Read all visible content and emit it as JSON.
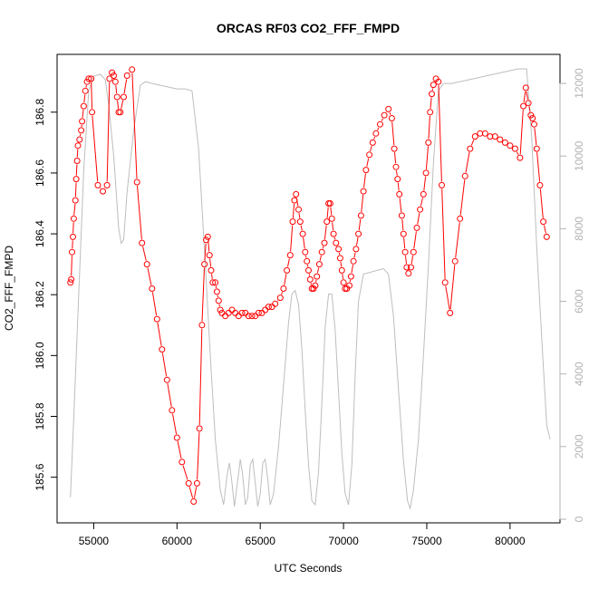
{
  "chart_data": {
    "type": "line",
    "title": "ORCAS RF03 CO2_FFF_FMPD",
    "xlabel": "UTC Seconds",
    "ylabel": "CO2_FFF_FMPD",
    "xlim": [
      52800,
      83000
    ],
    "ylim": [
      185.45,
      186.99
    ],
    "y2lim": [
      -100,
      12800
    ],
    "grid": false,
    "legend": "none",
    "x_ticks": [
      55000,
      60000,
      65000,
      70000,
      75000,
      80000
    ],
    "x_tick_labels": [
      "55000",
      "60000",
      "65000",
      "70000",
      "75000",
      "80000"
    ],
    "y_ticks": [
      185.6,
      185.8,
      186.0,
      186.2,
      186.4,
      186.6,
      186.8
    ],
    "y_tick_labels": [
      "185.6",
      "185.8",
      "186.0",
      "186.2",
      "186.4",
      "186.6",
      "186.8"
    ],
    "y2_ticks": [
      0,
      2000,
      4000,
      6000,
      8000,
      10000,
      12000
    ],
    "y2_tick_labels": [
      "0",
      "2000",
      "4000",
      "6000",
      "8000",
      "10000",
      "12000"
    ],
    "colors": {
      "co2": "#ff0000",
      "altitude": "#bebebe",
      "right_axis": "#b3b3b3",
      "frame": "#000000"
    },
    "series": [
      {
        "axis": "left",
        "style": "points-lines",
        "points": [
          [
            53600,
            186.24
          ],
          [
            53650,
            186.25
          ],
          [
            53700,
            186.34
          ],
          [
            53750,
            186.39
          ],
          [
            53800,
            186.45
          ],
          [
            53900,
            186.51
          ],
          [
            53950,
            186.58
          ],
          [
            54000,
            186.64
          ],
          [
            54050,
            186.69
          ],
          [
            54150,
            186.71
          ],
          [
            54250,
            186.74
          ],
          [
            54300,
            186.77
          ],
          [
            54400,
            186.82
          ],
          [
            54500,
            186.87
          ],
          [
            54600,
            186.9
          ],
          [
            54700,
            186.91
          ],
          [
            54850,
            186.91
          ],
          [
            54900,
            186.8
          ],
          [
            55250,
            186.56
          ],
          [
            55550,
            186.54
          ],
          [
            55800,
            186.56
          ],
          [
            55950,
            186.91
          ],
          [
            56100,
            186.93
          ],
          [
            56200,
            186.92
          ],
          [
            56300,
            186.9
          ],
          [
            56400,
            186.85
          ],
          [
            56500,
            186.8
          ],
          [
            56600,
            186.8
          ],
          [
            56800,
            186.85
          ],
          [
            57000,
            186.92
          ],
          [
            57300,
            186.94
          ],
          [
            57600,
            186.57
          ],
          [
            57900,
            186.37
          ],
          [
            58200,
            186.3
          ],
          [
            58500,
            186.22
          ],
          [
            58800,
            186.12
          ],
          [
            59100,
            186.02
          ],
          [
            59400,
            185.92
          ],
          [
            59700,
            185.82
          ],
          [
            60000,
            185.73
          ],
          [
            60300,
            185.65
          ],
          [
            60700,
            185.58
          ],
          [
            61000,
            185.52
          ],
          [
            61200,
            185.58
          ],
          [
            61350,
            185.76
          ],
          [
            61500,
            186.1
          ],
          [
            61650,
            186.3
          ],
          [
            61750,
            186.38
          ],
          [
            61850,
            186.39
          ],
          [
            61950,
            186.33
          ],
          [
            62050,
            186.28
          ],
          [
            62150,
            186.24
          ],
          [
            62300,
            186.24
          ],
          [
            62400,
            186.21
          ],
          [
            62500,
            186.18
          ],
          [
            62600,
            186.15
          ],
          [
            62700,
            186.14
          ],
          [
            62900,
            186.13
          ],
          [
            63100,
            186.14
          ],
          [
            63300,
            186.15
          ],
          [
            63500,
            186.14
          ],
          [
            63700,
            186.13
          ],
          [
            63900,
            186.14
          ],
          [
            64100,
            186.14
          ],
          [
            64300,
            186.13
          ],
          [
            64500,
            186.13
          ],
          [
            64700,
            186.13
          ],
          [
            64900,
            186.14
          ],
          [
            65100,
            186.14
          ],
          [
            65300,
            186.15
          ],
          [
            65500,
            186.16
          ],
          [
            65700,
            186.16
          ],
          [
            65900,
            186.17
          ],
          [
            66200,
            186.19
          ],
          [
            66400,
            186.22
          ],
          [
            66600,
            186.28
          ],
          [
            66800,
            186.33
          ],
          [
            66950,
            186.44
          ],
          [
            67050,
            186.51
          ],
          [
            67150,
            186.53
          ],
          [
            67300,
            186.48
          ],
          [
            67400,
            186.44
          ],
          [
            67550,
            186.4
          ],
          [
            67700,
            186.34
          ],
          [
            67800,
            186.31
          ],
          [
            67900,
            186.28
          ],
          [
            68000,
            186.25
          ],
          [
            68100,
            186.22
          ],
          [
            68200,
            186.22
          ],
          [
            68300,
            186.23
          ],
          [
            68400,
            186.26
          ],
          [
            68550,
            186.3
          ],
          [
            68700,
            186.34
          ],
          [
            68850,
            186.37
          ],
          [
            69000,
            186.44
          ],
          [
            69100,
            186.5
          ],
          [
            69200,
            186.5
          ],
          [
            69300,
            186.45
          ],
          [
            69400,
            186.4
          ],
          [
            69550,
            186.37
          ],
          [
            69700,
            186.35
          ],
          [
            69800,
            186.32
          ],
          [
            69900,
            186.28
          ],
          [
            70000,
            186.24
          ],
          [
            70100,
            186.22
          ],
          [
            70200,
            186.22
          ],
          [
            70350,
            186.23
          ],
          [
            70450,
            186.26
          ],
          [
            70600,
            186.31
          ],
          [
            70750,
            186.35
          ],
          [
            70900,
            186.4
          ],
          [
            71050,
            186.46
          ],
          [
            71200,
            186.54
          ],
          [
            71350,
            186.61
          ],
          [
            71550,
            186.66
          ],
          [
            71750,
            186.7
          ],
          [
            71950,
            186.73
          ],
          [
            72200,
            186.76
          ],
          [
            72450,
            186.79
          ],
          [
            72700,
            186.81
          ],
          [
            72900,
            186.78
          ],
          [
            73050,
            186.68
          ],
          [
            73150,
            186.62
          ],
          [
            73250,
            186.58
          ],
          [
            73350,
            186.53
          ],
          [
            73500,
            186.46
          ],
          [
            73600,
            186.4
          ],
          [
            73700,
            186.34
          ],
          [
            73800,
            186.29
          ],
          [
            73900,
            186.27
          ],
          [
            74050,
            186.29
          ],
          [
            74200,
            186.34
          ],
          [
            74400,
            186.42
          ],
          [
            74600,
            186.48
          ],
          [
            74800,
            186.53
          ],
          [
            74950,
            186.6
          ],
          [
            75100,
            186.7
          ],
          [
            75200,
            186.8
          ],
          [
            75300,
            186.86
          ],
          [
            75400,
            186.89
          ],
          [
            75550,
            186.91
          ],
          [
            75700,
            186.9
          ],
          [
            75900,
            186.56
          ],
          [
            76100,
            186.24
          ],
          [
            76400,
            186.14
          ],
          [
            76700,
            186.31
          ],
          [
            77000,
            186.45
          ],
          [
            77300,
            186.59
          ],
          [
            77600,
            186.68
          ],
          [
            77900,
            186.72
          ],
          [
            78200,
            186.73
          ],
          [
            78500,
            186.73
          ],
          [
            78800,
            186.72
          ],
          [
            79100,
            186.72
          ],
          [
            79400,
            186.71
          ],
          [
            79700,
            186.7
          ],
          [
            80000,
            186.69
          ],
          [
            80300,
            186.68
          ],
          [
            80600,
            186.65
          ],
          [
            80800,
            186.82
          ],
          [
            80950,
            186.88
          ],
          [
            81100,
            186.83
          ],
          [
            81250,
            186.79
          ],
          [
            81350,
            186.78
          ],
          [
            81450,
            186.76
          ],
          [
            81600,
            186.68
          ],
          [
            81800,
            186.56
          ],
          [
            82000,
            186.44
          ],
          [
            82200,
            186.39
          ]
        ]
      },
      {
        "axis": "right",
        "style": "line",
        "points": [
          [
            53600,
            600
          ],
          [
            53800,
            2800
          ],
          [
            54100,
            6200
          ],
          [
            54400,
            9600
          ],
          [
            54700,
            11800
          ],
          [
            55000,
            12200
          ],
          [
            55400,
            12250
          ],
          [
            55700,
            12100
          ],
          [
            55900,
            11400
          ],
          [
            56200,
            10000
          ],
          [
            56500,
            8000
          ],
          [
            56650,
            7600
          ],
          [
            56800,
            7700
          ],
          [
            57000,
            9000
          ],
          [
            57400,
            10700
          ],
          [
            57800,
            11950
          ],
          [
            58100,
            12050
          ],
          [
            58500,
            12000
          ],
          [
            59000,
            11950
          ],
          [
            59500,
            11900
          ],
          [
            60000,
            11850
          ],
          [
            60500,
            11850
          ],
          [
            60900,
            11800
          ],
          [
            61300,
            10200
          ],
          [
            61700,
            7000
          ],
          [
            62000,
            4500
          ],
          [
            62300,
            2200
          ],
          [
            62600,
            800
          ],
          [
            62800,
            400
          ],
          [
            63000,
            1200
          ],
          [
            63150,
            1550
          ],
          [
            63300,
            1000
          ],
          [
            63450,
            350
          ],
          [
            63600,
            900
          ],
          [
            63800,
            1650
          ],
          [
            63950,
            1200
          ],
          [
            64100,
            400
          ],
          [
            64250,
            600
          ],
          [
            64400,
            1500
          ],
          [
            64550,
            1650
          ],
          [
            64700,
            1000
          ],
          [
            64850,
            350
          ],
          [
            65000,
            700
          ],
          [
            65150,
            1550
          ],
          [
            65300,
            1650
          ],
          [
            65450,
            1100
          ],
          [
            65600,
            400
          ],
          [
            65800,
            700
          ],
          [
            66100,
            2000
          ],
          [
            66400,
            3700
          ],
          [
            66700,
            5400
          ],
          [
            66900,
            6200
          ],
          [
            67100,
            6300
          ],
          [
            67300,
            5900
          ],
          [
            67500,
            4700
          ],
          [
            67700,
            3000
          ],
          [
            67900,
            1500
          ],
          [
            68100,
            500
          ],
          [
            68300,
            400
          ],
          [
            68500,
            1300
          ],
          [
            68700,
            3200
          ],
          [
            68900,
            5300
          ],
          [
            69100,
            6200
          ],
          [
            69300,
            6200
          ],
          [
            69500,
            5200
          ],
          [
            69700,
            3500
          ],
          [
            69900,
            1800
          ],
          [
            70100,
            700
          ],
          [
            70300,
            400
          ],
          [
            70500,
            1500
          ],
          [
            70700,
            4000
          ],
          [
            70900,
            6000
          ],
          [
            71200,
            6750
          ],
          [
            71600,
            6800
          ],
          [
            72000,
            6850
          ],
          [
            72400,
            6900
          ],
          [
            72700,
            6750
          ],
          [
            73000,
            5600
          ],
          [
            73300,
            3600
          ],
          [
            73600,
            1600
          ],
          [
            73850,
            500
          ],
          [
            74000,
            300
          ],
          [
            74200,
            800
          ],
          [
            74500,
            2200
          ],
          [
            74800,
            4500
          ],
          [
            75100,
            7000
          ],
          [
            75400,
            9800
          ],
          [
            75700,
            11800
          ],
          [
            76000,
            12000
          ],
          [
            76500,
            12000
          ],
          [
            77000,
            12050
          ],
          [
            77500,
            12100
          ],
          [
            78000,
            12150
          ],
          [
            78500,
            12200
          ],
          [
            79000,
            12250
          ],
          [
            79500,
            12300
          ],
          [
            80000,
            12350
          ],
          [
            80500,
            12400
          ],
          [
            81000,
            12400
          ],
          [
            81300,
            10500
          ],
          [
            81600,
            7500
          ],
          [
            81900,
            5000
          ],
          [
            82200,
            2600
          ],
          [
            82400,
            2200
          ]
        ]
      }
    ]
  }
}
